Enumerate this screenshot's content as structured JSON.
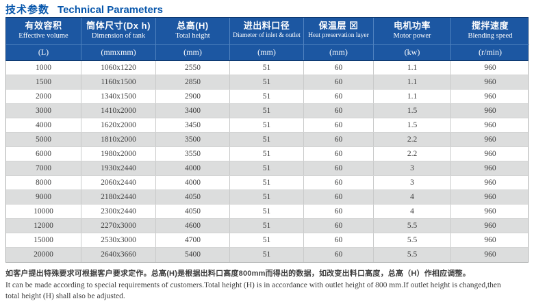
{
  "title": {
    "zh": "技术参数",
    "en": "Technical Parameters"
  },
  "table": {
    "columns": [
      {
        "zh": "有效容积",
        "en": "Effective volume",
        "unit": "(L)"
      },
      {
        "zh": "筒体尺寸(Dx h)",
        "en": "Dimension of tank",
        "unit": "(mmxmm)"
      },
      {
        "zh": "总高(H)",
        "en": "Total height",
        "unit": "(mm)"
      },
      {
        "zh": "进出料口径",
        "en": "Diameter of inlet & outlet",
        "unit": "(mm)"
      },
      {
        "zh": "保温层 ⊠",
        "en": "Heat preservation layer",
        "unit": "(mm)"
      },
      {
        "zh": "电机功率",
        "en": "Motor power",
        "unit": "(kw)"
      },
      {
        "zh": "搅拌速度",
        "en": "Blending speed",
        "unit": "(r/min)"
      }
    ],
    "rows": [
      [
        "1000",
        "1060x1220",
        "2550",
        "51",
        "60",
        "1.1",
        "960"
      ],
      [
        "1500",
        "1160x1500",
        "2850",
        "51",
        "60",
        "1.1",
        "960"
      ],
      [
        "2000",
        "1340x1500",
        "2900",
        "51",
        "60",
        "1.1",
        "960"
      ],
      [
        "3000",
        "1410x2000",
        "3400",
        "51",
        "60",
        "1.5",
        "960"
      ],
      [
        "4000",
        "1620x2000",
        "3450",
        "51",
        "60",
        "1.5",
        "960"
      ],
      [
        "5000",
        "1810x2000",
        "3500",
        "51",
        "60",
        "2.2",
        "960"
      ],
      [
        "6000",
        "1980x2000",
        "3550",
        "51",
        "60",
        "2.2",
        "960"
      ],
      [
        "7000",
        "1930x2440",
        "4000",
        "51",
        "60",
        "3",
        "960"
      ],
      [
        "8000",
        "2060x2440",
        "4000",
        "51",
        "60",
        "3",
        "960"
      ],
      [
        "9000",
        "2180x2440",
        "4050",
        "51",
        "60",
        "4",
        "960"
      ],
      [
        "10000",
        "2300x2440",
        "4050",
        "51",
        "60",
        "4",
        "960"
      ],
      [
        "12000",
        "2270x3000",
        "4600",
        "51",
        "60",
        "5.5",
        "960"
      ],
      [
        "15000",
        "2530x3000",
        "4700",
        "51",
        "60",
        "5.5",
        "960"
      ],
      [
        "20000",
        "2640x3660",
        "5400",
        "51",
        "60",
        "5.5",
        "960"
      ]
    ]
  },
  "footer": {
    "zh": "如客户提出特殊要求可根据客户要求定作。总高(H)是根据出料口高度800mm而得出的数据，如改变出料口高度，总高（H）作相应调整。",
    "en1": "It can be made according to special requirements of customers.Total height (H) is in accordance with outlet height of 800 mm.If outlet height is changed,then",
    "en2": "total height (H) shall also be adjusted."
  },
  "colors": {
    "title_blue": "#0857ac",
    "header_bg": "#1c57a2",
    "header_grid": "#4f82bf",
    "row_alt_gray": "#dcdddd",
    "grid_gray": "#c9caca"
  }
}
